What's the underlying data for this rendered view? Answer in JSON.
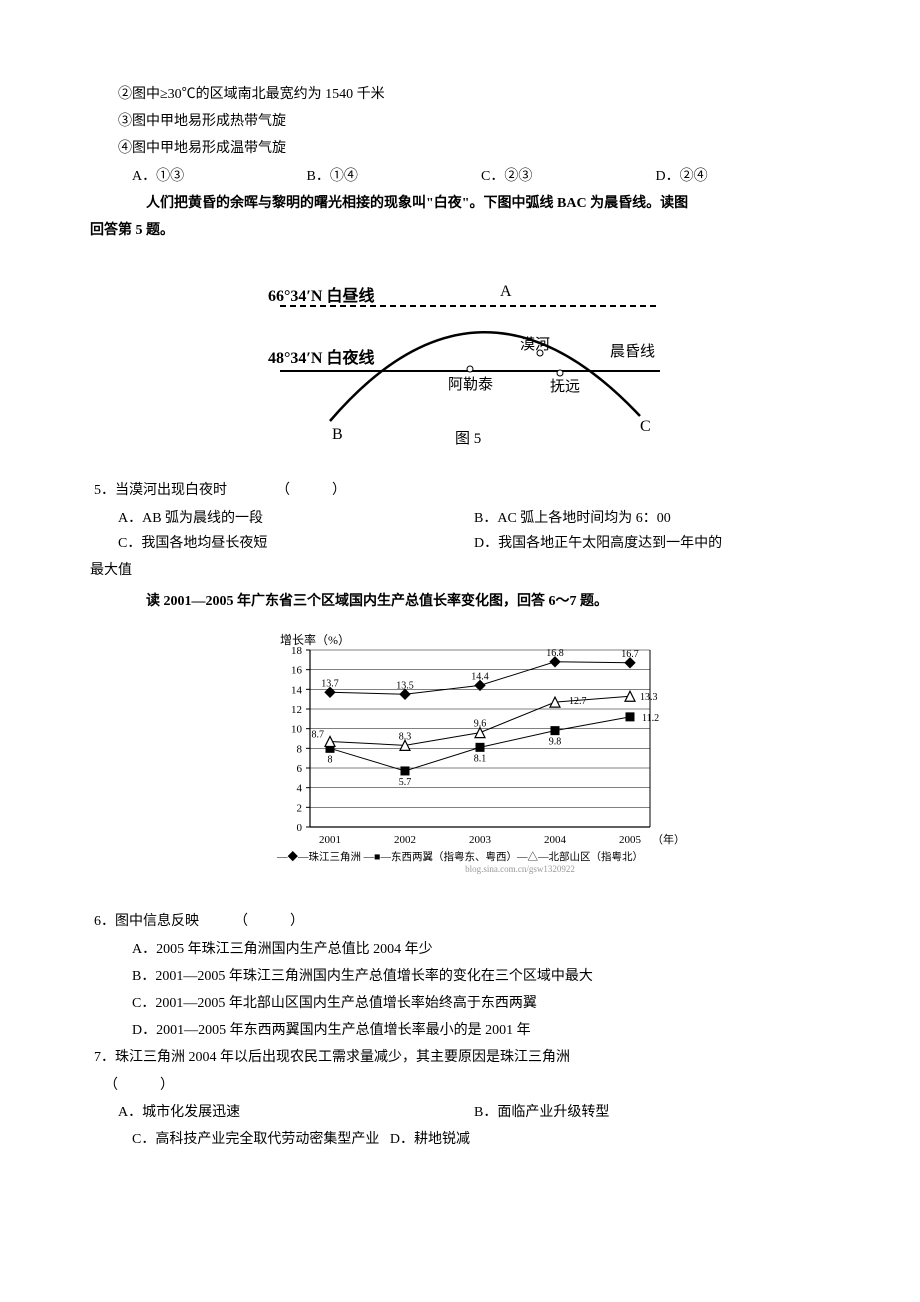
{
  "pre_lines": {
    "l1": "②图中≥30℃的区域南北最宽约为 1540 千米",
    "l2": "③图中甲地易形成热带气旋",
    "l3": "④图中甲地易形成温带气旋"
  },
  "pre_opts": {
    "a": "A．①③",
    "b": "B．①④",
    "c": "C．②③",
    "d": "D．②④"
  },
  "intro_q5_a": "人们把黄昏的余晖与黎明的曙光相接的现象叫\"白夜\"。下图中弧线 BAC 为晨昏线。读图",
  "intro_q5_b": "回答第 5 题。",
  "fig5": {
    "lat_top": "66°34′N 白昼线",
    "lat_bot": "48°34′N 白夜线",
    "A": "A",
    "B": "B",
    "C": "C",
    "aletai": "阿勒泰",
    "mohe": "漠河",
    "fuyuan": "抚远",
    "chenhun": "晨昏线",
    "caption": "图 5",
    "colors": {
      "stroke": "#000000",
      "bg": "#ffffff"
    }
  },
  "q5": {
    "stem": "5．当漠河出现白夜时　　　　（　　　）",
    "a": "A．AB 弧为晨线的一段",
    "b": "B．AC 弧上各地时间均为 6：00",
    "c": "C．我国各地均昼长夜短",
    "d": "D．我国各地正午太阳高度达到一年中的",
    "d_tail": "最大值"
  },
  "intro_q67": "读 2001—2005 年广东省三个区域国内生产总值长率变化图，回答 6～7 题。",
  "chart": {
    "type": "line",
    "title": "增长率（%）",
    "years": [
      "2001",
      "2002",
      "2003",
      "2004",
      "2005"
    ],
    "year_suffix": "（年）",
    "yticks": [
      0,
      2,
      4,
      6,
      8,
      10,
      12,
      14,
      16,
      18
    ],
    "ylim": [
      0,
      18
    ],
    "series": [
      {
        "name": "珠江三角洲",
        "marker": "diamond",
        "values": [
          13.7,
          13.5,
          14.4,
          16.8,
          16.7
        ]
      },
      {
        "name": "东西两翼（指粤东、粤西）",
        "marker": "square",
        "values": [
          8.0,
          5.7,
          8.1,
          9.8,
          11.2
        ]
      },
      {
        "name": "北部山区（指粤北）",
        "marker": "triangle",
        "values": [
          8.7,
          8.3,
          9.6,
          12.7,
          13.3
        ]
      }
    ],
    "colors": {
      "line": "#000000",
      "grid": "#000000",
      "bg": "#ffffff",
      "text": "#000000"
    },
    "legend_text": "—◆—珠江三角洲 —■—东西两翼（指粤东、粤西）—△—北部山区（指粤北）",
    "watermark": "blog.sina.com.cn/gsw1320922",
    "line_width": 1,
    "marker_size": 5
  },
  "q6": {
    "stem": "6．图中信息反映　　　（　　　）",
    "a": "A．2005 年珠江三角洲国内生产总值比 2004 年少",
    "b": "B．2001—2005 年珠江三角洲国内生产总值增长率的变化在三个区域中最大",
    "c": "C．2001—2005 年北部山区国内生产总值增长率始终高于东西两翼",
    "d": "D．2001—2005 年东西两翼国内生产总值增长率最小的是 2001 年"
  },
  "q7": {
    "stem": "7．珠江三角洲 2004 年以后出现农民工需求量减少，其主要原因是珠江三角洲",
    "paren": "（　　　）",
    "a": "A．城市化发展迅速",
    "b": "B．面临产业升级转型",
    "c": "C．高科技产业完全取代劳动密集型产业",
    "d": "D．耕地锐减"
  }
}
